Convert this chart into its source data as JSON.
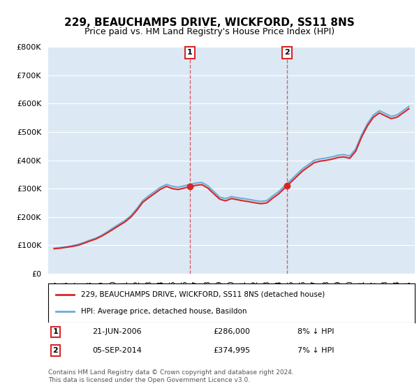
{
  "title": "229, BEAUCHAMPS DRIVE, WICKFORD, SS11 8NS",
  "subtitle": "Price paid vs. HM Land Registry's House Price Index (HPI)",
  "hpi_label": "HPI: Average price, detached house, Basildon",
  "property_label": "229, BEAUCHAMPS DRIVE, WICKFORD, SS11 8NS (detached house)",
  "sale1_date": "21-JUN-2006",
  "sale1_price": 286000,
  "sale1_pct": "8% ↓ HPI",
  "sale2_date": "05-SEP-2014",
  "sale2_price": 374995,
  "sale2_pct": "7% ↓ HPI",
  "footnote": "Contains HM Land Registry data © Crown copyright and database right 2024.\nThis data is licensed under the Open Government Licence v3.0.",
  "ylim": [
    0,
    800000
  ],
  "yticks": [
    0,
    100000,
    200000,
    300000,
    400000,
    500000,
    600000,
    700000,
    800000
  ],
  "bg_color": "#dce9f5",
  "plot_bg": "#dce9f5",
  "hpi_color": "#6baed6",
  "property_color": "#d62728",
  "vline_color": "#d62728",
  "vline_alpha": 0.7,
  "sale1_year": 2006.47,
  "sale2_year": 2014.68
}
